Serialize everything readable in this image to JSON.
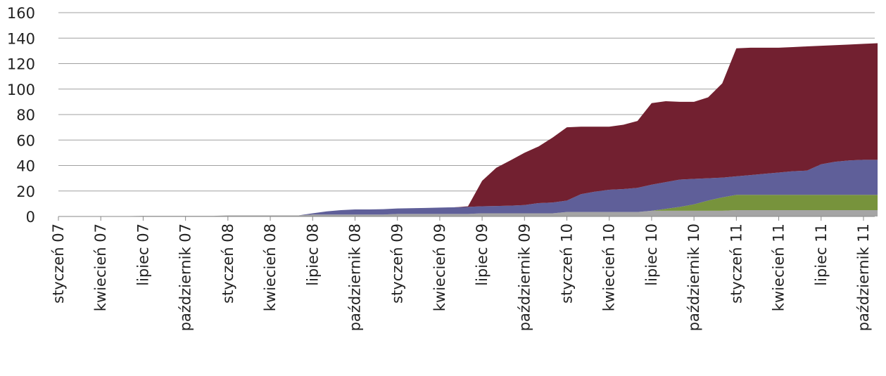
{
  "chart_data": {
    "type": "stacked_area",
    "categories": [
      "styczeń 07",
      null,
      null,
      "kwiecień 07",
      null,
      null,
      "lipiec 07",
      null,
      null,
      "październik 07",
      null,
      null,
      "styczeń 08",
      null,
      null,
      "kwiecień 08",
      null,
      null,
      "lipiec 08",
      null,
      null,
      "październik 08",
      null,
      null,
      "styczeń 09",
      null,
      null,
      "kwiecień 09",
      null,
      null,
      "lipiec 09",
      null,
      null,
      "październik 09",
      null,
      null,
      "styczeń 10",
      null,
      null,
      "kwiecień 10",
      null,
      null,
      "lipiec 10",
      null,
      null,
      "październik 10",
      null,
      null,
      "styczeń 11",
      null,
      null,
      "kwiecień 11",
      null,
      null,
      "lipiec 11",
      null,
      null,
      "październik 11",
      null
    ],
    "series": [
      {
        "color": "#a5a5a5",
        "values": [
          0.3,
          0.3,
          0.3,
          0.3,
          0.3,
          0.3,
          0.5,
          0.5,
          0.5,
          0.5,
          0.5,
          0.5,
          0.8,
          0.8,
          0.8,
          0.8,
          0.8,
          0.8,
          1.5,
          1.5,
          1.5,
          1.5,
          1.5,
          1.5,
          2,
          2,
          2,
          2,
          2,
          2,
          2.5,
          2.5,
          2.5,
          2.5,
          2.5,
          2.5,
          3.5,
          3.5,
          3.5,
          3.5,
          3.5,
          3.5,
          4.5,
          4.5,
          4.5,
          4.5,
          4.5,
          4.5,
          5,
          5,
          5,
          5,
          5,
          5,
          5,
          5,
          5,
          5,
          5
        ]
      },
      {
        "color": "#77933c",
        "values": [
          0,
          0,
          0,
          0,
          0,
          0,
          0,
          0,
          0,
          0,
          0,
          0,
          0,
          0,
          0,
          0,
          0,
          0,
          0,
          0,
          0,
          0,
          0,
          0,
          0,
          0,
          0,
          0,
          0,
          0,
          0,
          0,
          0,
          0,
          0,
          0,
          0,
          0,
          0,
          0,
          0,
          0,
          0,
          1.5,
          3,
          5,
          8,
          10.5,
          12,
          12,
          12,
          12,
          12,
          12,
          12,
          12,
          12,
          12,
          12
        ]
      },
      {
        "color": "#5f5f99",
        "values": [
          0,
          0,
          0,
          0,
          0,
          0,
          0,
          0,
          0,
          0,
          0,
          0,
          0,
          0,
          0,
          0,
          0,
          0,
          1,
          2.5,
          3.5,
          4,
          4,
          4.2,
          4.3,
          4.5,
          4.7,
          5,
          5.2,
          5.5,
          5.5,
          5.7,
          6,
          6.5,
          8,
          8.5,
          9,
          14,
          16,
          17.5,
          18,
          19,
          20.5,
          21,
          21.5,
          20,
          17.5,
          15.5,
          14.5,
          15.5,
          16.5,
          17.5,
          18.5,
          19,
          24,
          26,
          27,
          27.5,
          27.5
        ]
      },
      {
        "color": "#722030",
        "values": [
          0,
          0,
          0,
          0,
          0,
          0,
          0,
          0,
          0,
          0,
          0,
          0,
          0,
          0,
          0,
          0,
          0,
          0,
          0,
          0,
          0,
          0,
          0,
          0,
          0,
          0,
          0,
          0,
          0,
          0.5,
          20,
          30,
          35.5,
          41,
          44.5,
          51,
          57.5,
          53,
          51,
          49.5,
          50.5,
          52.5,
          64,
          63.5,
          61,
          60.5,
          63.5,
          74,
          100.5,
          100,
          99,
          98,
          97.5,
          97.5,
          93,
          91.5,
          91,
          91,
          91.5
        ]
      }
    ],
    "ylim": [
      0,
      160
    ],
    "yticks": [
      0,
      20,
      40,
      60,
      80,
      100,
      120,
      140,
      160
    ],
    "grid": true
  }
}
